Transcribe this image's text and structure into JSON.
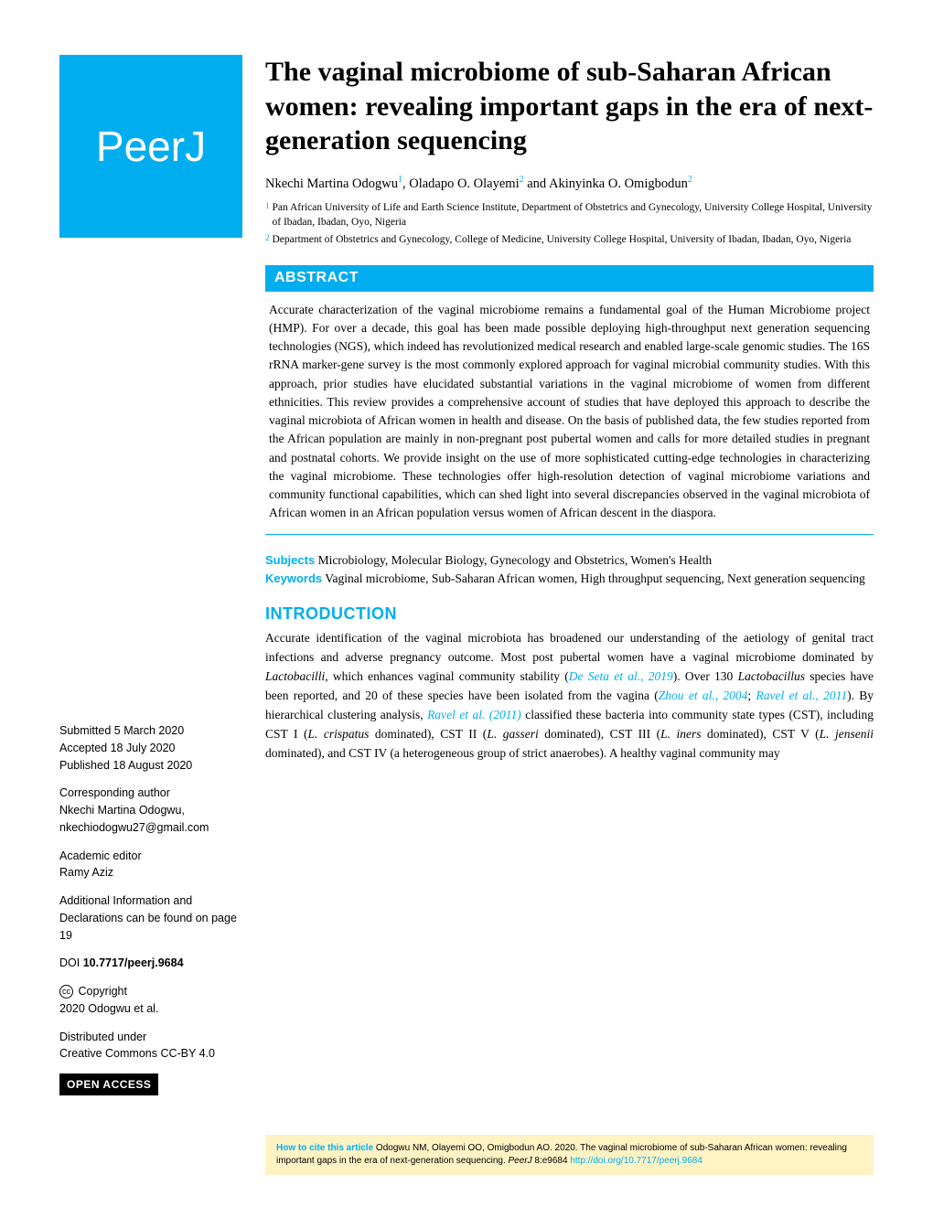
{
  "logo": {
    "text": "PeerJ"
  },
  "title": "The vaginal microbiome of sub-Saharan African women: revealing important gaps in the era of next-generation sequencing",
  "authors": {
    "a1": {
      "name": "Nkechi Martina Odogwu",
      "sup": "1"
    },
    "a2": {
      "name": "Oladapo O. Olayemi",
      "sup": "2"
    },
    "a3": {
      "name": "Akinyinka O. Omigbodun",
      "sup": "2"
    }
  },
  "separator_comma": ",  ",
  "separator_and": " and  ",
  "affiliations": {
    "aff1": {
      "num": "1",
      "text": "Pan African University of Life and Earth Science Institute, Department of Obstetrics and Gynecology, University College Hospital, University of Ibadan, Ibadan, Oyo, Nigeria"
    },
    "aff2": {
      "num": "2",
      "text": "Department of Obstetrics and Gynecology, College of Medicine, University College Hospital, University of Ibadan, Ibadan, Oyo, Nigeria"
    }
  },
  "abstract": {
    "heading": "ABSTRACT",
    "text": "Accurate characterization of the vaginal microbiome remains a fundamental goal of the Human Microbiome project (HMP). For over a decade, this goal has been made possible deploying high-throughput next generation sequencing technologies (NGS), which indeed has revolutionized medical research and enabled large-scale genomic studies. The 16S rRNA marker-gene survey is the most commonly explored approach for vaginal microbial community studies. With this approach, prior studies have elucidated substantial variations in the vaginal microbiome of women from different ethnicities. This review provides a comprehensive account of studies that have deployed this approach to describe the vaginal microbiota of African women in health and disease. On the basis of published data, the few studies reported from the African population are mainly in non-pregnant post pubertal women and calls for more detailed studies in pregnant and postnatal cohorts. We provide insight on the use of more sophisticated cutting-edge technologies in characterizing the vaginal microbiome. These technologies offer high-resolution detection of vaginal microbiome variations and community functional capabilities, which can shed light into several discrepancies observed in the vaginal microbiota of African women in an African population versus women of African descent in the diaspora."
  },
  "subjects": {
    "label": "Subjects",
    "text": " Microbiology, Molecular Biology, Gynecology and Obstetrics, Women's Health"
  },
  "keywords": {
    "label": "Keywords",
    "text": "  Vaginal microbiome, Sub-Saharan African women, High throughput sequencing, Next generation sequencing"
  },
  "intro": {
    "heading": "INTRODUCTION",
    "p1a": "Accurate identification of the vaginal microbiota has broadened our understanding of the aetiology of genital tract infections and adverse pregnancy outcome. Most post pubertal women have a vaginal microbiome dominated by ",
    "sp1": "Lactobacilli",
    "p1b": ", which enhances vaginal community stability (",
    "r1": "De Seta et al., 2019",
    "p1c": "). Over 130 ",
    "sp2": "Lactobacillus",
    "p1d": " species have been reported, and 20 of these species have been isolated from the vagina (",
    "r2": "Zhou et al., 2004",
    "p1e": "; ",
    "r3": "Ravel et al., 2011",
    "p1f": "). By hierarchical clustering analysis, ",
    "r4": "Ravel et al. (2011)",
    "p1g": " classified these bacteria into community state types (CST), including CST I (",
    "sp3": "L. crispatus",
    "p1h": " dominated), CST II (",
    "sp4": "L. gasseri",
    "p1i": " dominated), CST III (",
    "sp5": "L. iners",
    "p1j": " dominated), CST V (",
    "sp6": "L. jensenii",
    "p1k": " dominated), and CST IV (a heterogeneous group of strict anaerobes). A healthy vaginal community may"
  },
  "sidebar": {
    "submitted_label": "Submitted ",
    "submitted": "5 March 2020",
    "accepted_label": "Accepted  ",
    "accepted": "18 July 2020",
    "published_label": "Published ",
    "published": "18 August 2020",
    "corr_label": "Corresponding author",
    "corr_name": "Nkechi Martina Odogwu,",
    "corr_email": "nkechiodogwu27@gmail.com",
    "editor_label": "Academic editor",
    "editor": "Ramy Aziz",
    "addl": "Additional Information and Declarations can be found on page 19",
    "doi_label": "DOI ",
    "doi": "10.7717/peerj.9684",
    "copyright_label": "Copyright",
    "copyright": "2020 Odogwu et al.",
    "dist": "Distributed under",
    "license": "Creative Commons CC-BY 4.0",
    "open_access": "OPEN ACCESS",
    "cc": "cc"
  },
  "citation": {
    "label": "How to cite this article",
    "text1": " Odogwu NM, Olayemi OO, Omigbodun AO. 2020. The vaginal microbiome of sub-Saharan African women: revealing important gaps in the era of next-generation sequencing. ",
    "journal": "PeerJ",
    "text2": " 8:e9684 ",
    "link": "http://doi.org/10.7717/peerj.9684"
  }
}
